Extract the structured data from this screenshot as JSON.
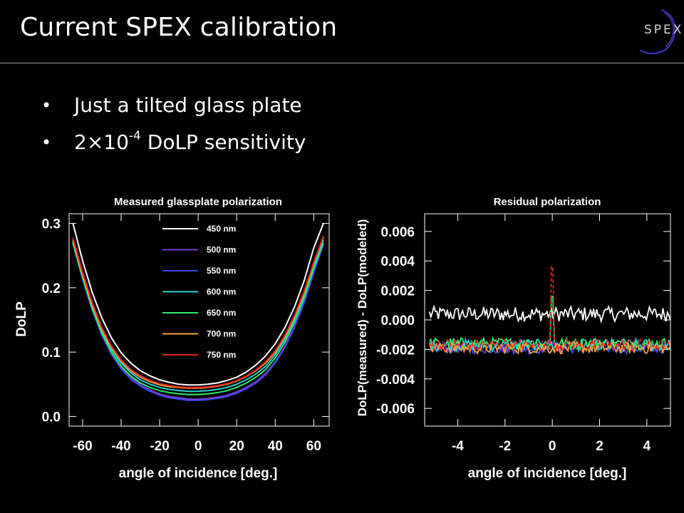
{
  "slide": {
    "title": "Current SPEX calibration",
    "logo_text": "SPEX",
    "bullets": [
      {
        "text": "Just a tilted glass plate"
      },
      {
        "prefix": "2×10",
        "exponent": "-4",
        "suffix": " DoLP sensitivity"
      }
    ]
  },
  "chart_data": [
    {
      "type": "line",
      "title": "Measured glassplate polarization",
      "xlabel": "angle of incidence [deg.]",
      "ylabel": "DoLP",
      "xlim": [
        -67,
        68
      ],
      "ylim": [
        -0.015,
        0.315
      ],
      "xticks": [
        -60,
        -40,
        -20,
        0,
        20,
        40,
        60
      ],
      "xtick_labels": [
        "-60",
        "-40",
        "-20",
        "0",
        "20",
        "40",
        "60"
      ],
      "yticks": [
        0.0,
        0.1,
        0.2,
        0.3
      ],
      "ytick_labels": [
        "0.0",
        "0.1",
        "0.2",
        "0.3"
      ],
      "legend_position": "top-center",
      "x": [
        -65,
        -60,
        -55,
        -50,
        -45,
        -40,
        -35,
        -30,
        -25,
        -20,
        -15,
        -10,
        -5,
        0,
        5,
        10,
        15,
        20,
        25,
        30,
        35,
        40,
        45,
        50,
        55,
        60,
        65
      ],
      "series": [
        {
          "name": "450 nm",
          "color": "#ffffff",
          "values": [
            0.3,
            0.242,
            0.193,
            0.153,
            0.122,
            0.099,
            0.083,
            0.071,
            0.063,
            0.057,
            0.053,
            0.05,
            0.049,
            0.049,
            0.05,
            0.052,
            0.056,
            0.061,
            0.069,
            0.08,
            0.094,
            0.113,
            0.138,
            0.17,
            0.211,
            0.262,
            0.3
          ]
        },
        {
          "name": "500 nm",
          "color": "#7a3fc8",
          "values": [
            0.27,
            0.215,
            0.167,
            0.128,
            0.098,
            0.076,
            0.06,
            0.049,
            0.041,
            0.035,
            0.031,
            0.029,
            0.027,
            0.027,
            0.028,
            0.03,
            0.033,
            0.038,
            0.045,
            0.054,
            0.067,
            0.085,
            0.109,
            0.14,
            0.178,
            0.225,
            0.27
          ]
        },
        {
          "name": "550 nm",
          "color": "#3b47e8",
          "values": [
            0.268,
            0.213,
            0.165,
            0.126,
            0.096,
            0.074,
            0.058,
            0.047,
            0.039,
            0.033,
            0.029,
            0.027,
            0.025,
            0.025,
            0.026,
            0.028,
            0.031,
            0.036,
            0.043,
            0.052,
            0.065,
            0.083,
            0.107,
            0.138,
            0.176,
            0.223,
            0.267
          ]
        },
        {
          "name": "600 nm",
          "color": "#22d3d3",
          "values": [
            0.272,
            0.218,
            0.171,
            0.133,
            0.104,
            0.083,
            0.068,
            0.057,
            0.05,
            0.045,
            0.042,
            0.04,
            0.039,
            0.039,
            0.04,
            0.042,
            0.045,
            0.05,
            0.057,
            0.066,
            0.078,
            0.096,
            0.12,
            0.151,
            0.189,
            0.235,
            0.275
          ]
        },
        {
          "name": "650 nm",
          "color": "#2ee86b",
          "values": [
            0.27,
            0.216,
            0.168,
            0.129,
            0.1,
            0.078,
            0.063,
            0.052,
            0.045,
            0.04,
            0.037,
            0.035,
            0.034,
            0.034,
            0.035,
            0.037,
            0.04,
            0.045,
            0.052,
            0.061,
            0.073,
            0.091,
            0.115,
            0.146,
            0.184,
            0.23,
            0.27
          ]
        },
        {
          "name": "700 nm",
          "color": "#f5a340",
          "values": [
            0.274,
            0.22,
            0.173,
            0.135,
            0.107,
            0.086,
            0.071,
            0.061,
            0.054,
            0.049,
            0.046,
            0.045,
            0.044,
            0.044,
            0.045,
            0.047,
            0.05,
            0.055,
            0.062,
            0.071,
            0.083,
            0.1,
            0.124,
            0.155,
            0.193,
            0.239,
            0.279
          ]
        },
        {
          "name": "750 nm",
          "color": "#e02020",
          "values": [
            0.278,
            0.224,
            0.177,
            0.138,
            0.109,
            0.088,
            0.073,
            0.063,
            0.056,
            0.051,
            0.048,
            0.046,
            0.045,
            0.045,
            0.046,
            0.048,
            0.051,
            0.056,
            0.063,
            0.072,
            0.085,
            0.102,
            0.126,
            0.157,
            0.195,
            0.24,
            0.28
          ]
        }
      ]
    },
    {
      "type": "line",
      "title": "Residual polarization",
      "xlabel": "angle of incidence [deg.]",
      "ylabel": "DoLP(measured) - DoLP(modeled)",
      "xlim": [
        -5.4,
        5.0
      ],
      "ylim": [
        -0.0072,
        0.0072
      ],
      "xticks": [
        -4,
        -2,
        0,
        2,
        4
      ],
      "xtick_labels": [
        "-4",
        "-2",
        "0",
        "2",
        "4"
      ],
      "yticks": [
        0.006,
        0.004,
        0.002,
        0.0,
        -0.002,
        -0.004,
        -0.006
      ],
      "ytick_labels": [
        "0.006",
        "0.004",
        "0.002",
        "0.000",
        "-0.002",
        "-0.004",
        "-0.006"
      ],
      "x_start": -5.2,
      "x_end": 5.0,
      "spike_x": 0.0,
      "series": [
        {
          "name": "450 nm",
          "color": "#ffffff",
          "style": "solid",
          "baseline": 0.0004,
          "noise": 0.0005,
          "spike": 0.0
        },
        {
          "name": "500 nm",
          "color": "#7a3fc8",
          "style": "dotted",
          "baseline": -0.0018,
          "noise": 0.0004,
          "spike": 0.0
        },
        {
          "name": "550 nm",
          "color": "#3b47e8",
          "style": "solid",
          "baseline": -0.0019,
          "noise": 0.0004,
          "spike": 0.0
        },
        {
          "name": "600 nm",
          "color": "#22d3d3",
          "style": "solid",
          "baseline": -0.0017,
          "noise": 0.0004,
          "spike": 0.0
        },
        {
          "name": "650 nm",
          "color": "#2ee86b",
          "style": "solid",
          "baseline": -0.0016,
          "noise": 0.0004,
          "spike": 0.0032
        },
        {
          "name": "700 nm",
          "color": "#f5a340",
          "style": "solid",
          "baseline": -0.0019,
          "noise": 0.0004,
          "spike": 0.0
        },
        {
          "name": "750 nm",
          "color": "#e02020",
          "style": "dashed",
          "baseline": -0.0017,
          "noise": 0.0004,
          "spike": 0.0053
        }
      ]
    }
  ]
}
